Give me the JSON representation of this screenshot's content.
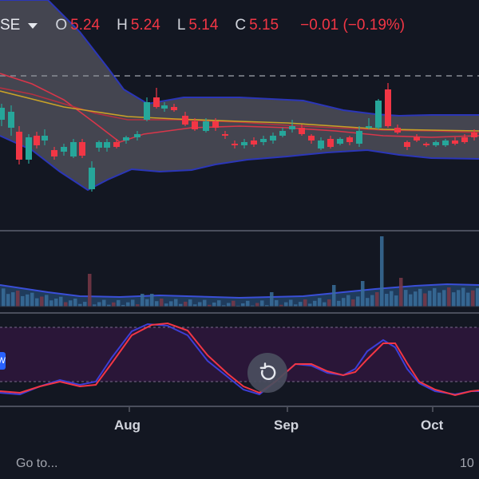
{
  "legend": {
    "symbol": "SE",
    "open_label": "O",
    "open": "5.24",
    "high_label": "H",
    "high": "5.24",
    "low_label": "L",
    "low": "5.14",
    "close_label": "C",
    "close": "5.15",
    "change": "−0.01 (−0.19%)"
  },
  "x_axis": [
    "Aug",
    "Sep",
    "Oct"
  ],
  "footer": {
    "goto_label": "Go to...",
    "range_label": "10"
  },
  "oscillator_tag": "W",
  "icons": {
    "reset": "reset-rotate-icon",
    "symbol_menu": "chevron-down-icon"
  },
  "colors": {
    "background": "#131722",
    "up": "#26a69a",
    "down": "#f23645",
    "bollinger_band": "#2b36b8",
    "bollinger_fill": "#4a4a55",
    "ma_yellow": "#c9a227",
    "osc_fill": "#2a1638",
    "osc_line_red": "#f23645",
    "osc_line_blue": "#3d3ed6"
  }
}
